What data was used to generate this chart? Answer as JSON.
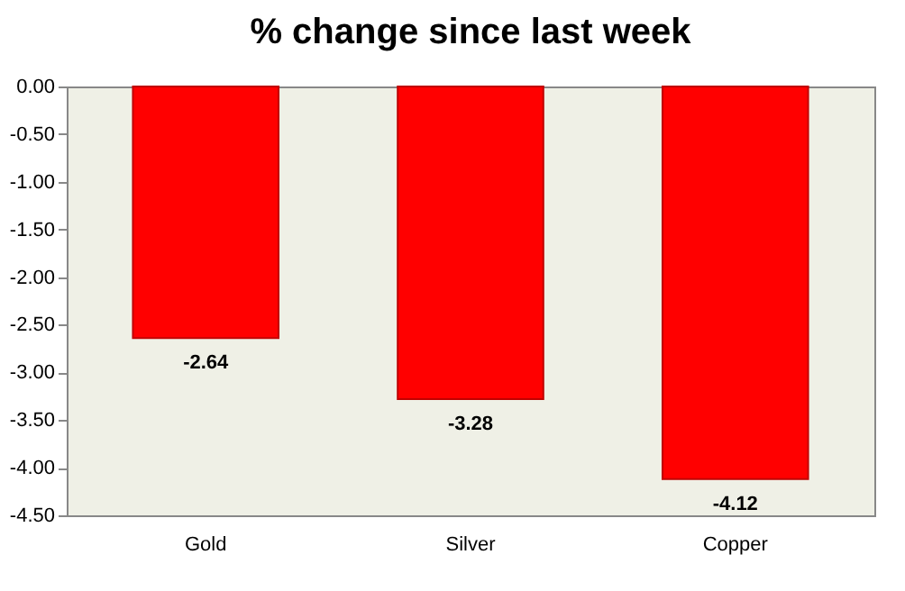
{
  "chart_data": {
    "type": "bar",
    "title": "% change since last week",
    "categories": [
      "Gold",
      "Silver",
      "Copper"
    ],
    "values": [
      -2.64,
      -3.28,
      -4.12
    ],
    "color": "#ff0000",
    "data_labels": true,
    "ylim": [
      -4.5,
      0
    ],
    "yticks": [
      {
        "value": 0,
        "label": "0.00"
      },
      {
        "value": -0.5,
        "label": "-0.50"
      },
      {
        "value": -1,
        "label": "-1.00"
      },
      {
        "value": -1.5,
        "label": "-1.50"
      },
      {
        "value": -2,
        "label": "-2.00"
      },
      {
        "value": -2.5,
        "label": "-2.50"
      },
      {
        "value": -3,
        "label": "-3.00"
      },
      {
        "value": -3.5,
        "label": "-3.50"
      },
      {
        "value": -4,
        "label": "-4.00"
      },
      {
        "value": -4.5,
        "label": "-4.50"
      }
    ],
    "grid": false
  }
}
